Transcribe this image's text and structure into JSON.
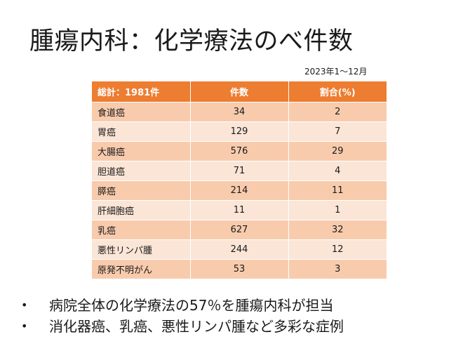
{
  "slide": {
    "title": "腫瘍内科：化学療法のべ件数",
    "period": "2023年1～12月"
  },
  "table": {
    "headers": {
      "label": "総計：1981件",
      "count": "件数",
      "percent": "割合(%)"
    },
    "rows": [
      {
        "label": "食道癌",
        "count": "34",
        "percent": "2"
      },
      {
        "label": "胃癌",
        "count": "129",
        "percent": "7"
      },
      {
        "label": "大腸癌",
        "count": "576",
        "percent": "29"
      },
      {
        "label": "胆道癌",
        "count": "71",
        "percent": "4"
      },
      {
        "label": "膵癌",
        "count": "214",
        "percent": "11"
      },
      {
        "label": "肝細胞癌",
        "count": "11",
        "percent": "1"
      },
      {
        "label": "乳癌",
        "count": "627",
        "percent": "32"
      },
      {
        "label": "悪性リンパ腫",
        "count": "244",
        "percent": "12"
      },
      {
        "label": "原発不明がん",
        "count": "53",
        "percent": "3"
      }
    ]
  },
  "bullets": {
    "marker": "•",
    "items": [
      "病院全体の化学療法の57％を腫瘍内科が担当",
      "消化器癌、乳癌、悪性リンパ腫など多彩な症例"
    ]
  },
  "colors": {
    "header_bg": "#ed7d31",
    "row_odd_bg": "#f8cbad",
    "row_even_bg": "#fbe5d6"
  }
}
